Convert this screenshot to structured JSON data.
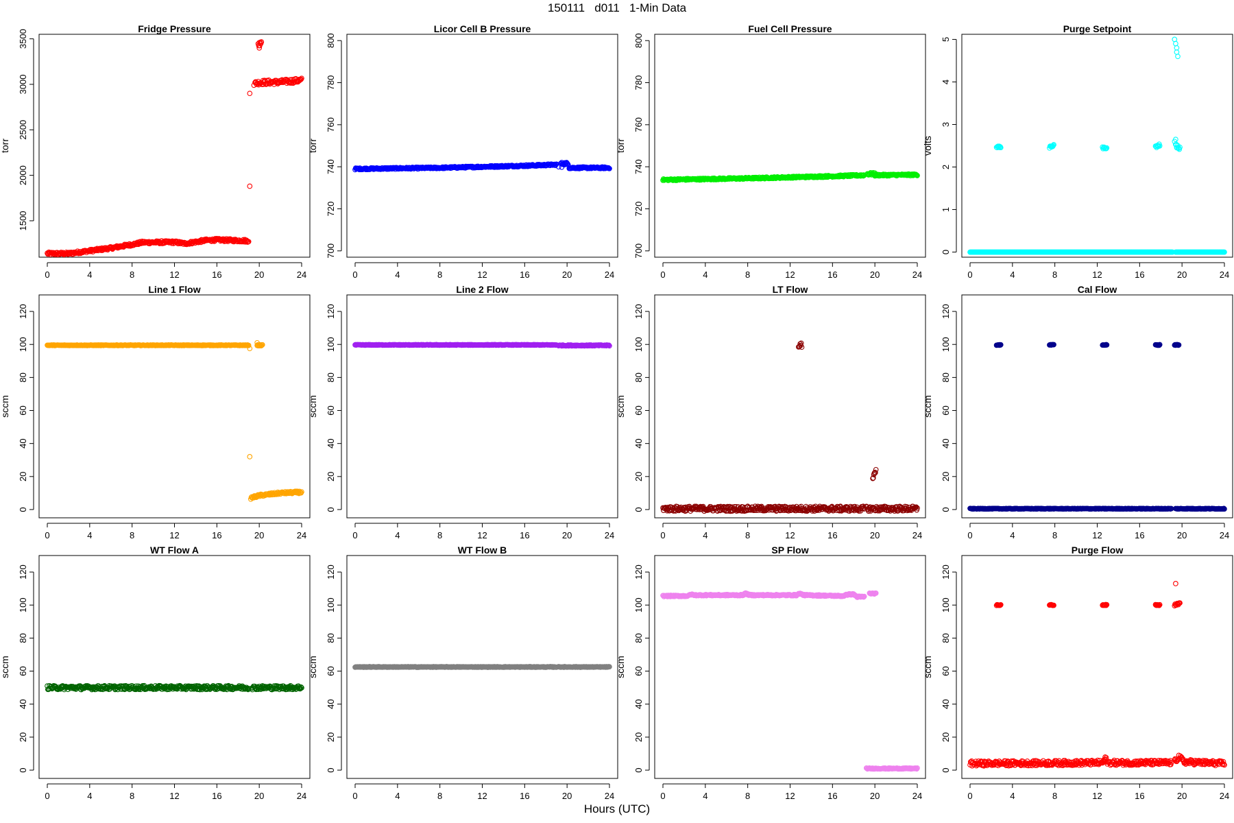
{
  "title": "150111   d011   1-Min Data",
  "xlabel": "Hours (UTC)",
  "x_ticks": [
    0,
    4,
    8,
    12,
    16,
    20,
    24
  ],
  "chart_data": [
    {
      "type": "scatter",
      "title": "Fridge Pressure",
      "ylabel": "torr",
      "color": "#ff0000",
      "xlim": [
        0,
        24
      ],
      "ylim": [
        1100,
        3550
      ],
      "yticks": [
        1500,
        2000,
        2500,
        3000,
        3500
      ],
      "segments": [
        {
          "points": [
            [
              0,
              1140
            ],
            [
              2,
              1140
            ],
            [
              4,
              1170
            ],
            [
              6,
              1200
            ],
            [
              8,
              1240
            ],
            [
              9,
              1262
            ],
            [
              12,
              1265
            ],
            [
              13,
              1250
            ],
            [
              15,
              1285
            ],
            [
              16,
              1290
            ],
            [
              19,
              1280
            ]
          ],
          "noise": 15
        },
        {
          "points": [
            [
              19.6,
              3010
            ],
            [
              20,
              3020
            ],
            [
              22,
              3025
            ],
            [
              24,
              3045
            ]
          ],
          "noise": 25
        },
        {
          "points": [
            [
              19.9,
              3430
            ],
            [
              20.2,
              3470
            ]
          ],
          "noise": 30
        }
      ],
      "outliers": [
        [
          19.1,
          1880
        ],
        [
          19.1,
          2900
        ],
        [
          19.5,
          2990
        ],
        [
          20,
          3400
        ]
      ]
    },
    {
      "type": "scatter",
      "title": "Licor Cell B Pressure",
      "ylabel": "torr",
      "color": "#0000ff",
      "xlim": [
        0,
        24
      ],
      "ylim": [
        697,
        803
      ],
      "yticks": [
        700,
        720,
        740,
        760,
        780,
        800
      ],
      "segments": [
        {
          "points": [
            [
              0,
              739
            ],
            [
              8,
              739.5
            ],
            [
              16,
              740.5
            ],
            [
              19,
              741
            ]
          ],
          "noise": 0.4
        },
        {
          "points": [
            [
              19.4,
              741.5
            ],
            [
              20.1,
              741.5
            ]
          ],
          "noise": 0.6
        },
        {
          "points": [
            [
              20.2,
              739.5
            ],
            [
              24,
              739.5
            ]
          ],
          "noise": 0.4
        }
      ],
      "outliers": [
        [
          19.2,
          740
        ],
        [
          19.5,
          739.8
        ]
      ]
    },
    {
      "type": "scatter",
      "title": "Fuel Cell Pressure",
      "ylabel": "torr",
      "color": "#00ee00",
      "xlim": [
        0,
        24
      ],
      "ylim": [
        697,
        803
      ],
      "yticks": [
        700,
        720,
        740,
        760,
        780,
        800
      ],
      "segments": [
        {
          "points": [
            [
              0,
              733.8
            ],
            [
              8,
              734.5
            ],
            [
              16,
              735.5
            ],
            [
              19,
              736
            ]
          ],
          "noise": 0.4
        },
        {
          "points": [
            [
              19.3,
              736.6
            ],
            [
              20,
              736.6
            ]
          ],
          "noise": 0.6
        },
        {
          "points": [
            [
              20,
              736
            ],
            [
              24,
              736.2
            ]
          ],
          "noise": 0.4
        }
      ],
      "outliers": []
    },
    {
      "type": "scatter",
      "title": "Purge Setpoint",
      "ylabel": "volts",
      "color": "#00ffff",
      "xlim": [
        0,
        24
      ],
      "ylim": [
        -0.12,
        5.12
      ],
      "yticks": [
        0,
        1,
        2,
        3,
        4,
        5
      ],
      "segments": [
        {
          "points": [
            [
              0,
              0
            ],
            [
              19.1,
              0
            ]
          ],
          "noise": 0
        },
        {
          "points": [
            [
              19.4,
              0
            ],
            [
              24,
              0
            ]
          ],
          "noise": 0
        },
        {
          "points": [
            [
              2.5,
              2.47
            ],
            [
              2.9,
              2.47
            ]
          ],
          "noise": 0.02
        },
        {
          "points": [
            [
              7.5,
              2.45
            ],
            [
              7.9,
              2.52
            ]
          ],
          "noise": 0.03
        },
        {
          "points": [
            [
              12.5,
              2.45
            ],
            [
              12.9,
              2.45
            ]
          ],
          "noise": 0.02
        },
        {
          "points": [
            [
              17.5,
              2.47
            ],
            [
              17.9,
              2.52
            ]
          ],
          "noise": 0.03
        },
        {
          "points": [
            [
              19.4,
              2.5
            ],
            [
              19.8,
              2.45
            ]
          ],
          "noise": 0.04
        }
      ],
      "outliers": [
        [
          19.3,
          5.0
        ],
        [
          19.4,
          4.9
        ],
        [
          19.5,
          4.8
        ],
        [
          19.5,
          4.7
        ],
        [
          19.6,
          4.6
        ],
        [
          19.3,
          2.6
        ],
        [
          19.4,
          2.65
        ]
      ]
    },
    {
      "type": "scatter",
      "title": "Line 1 Flow",
      "ylabel": "sccm",
      "color": "#ffa500",
      "xlim": [
        0,
        24
      ],
      "ylim": [
        -5,
        130
      ],
      "yticks": [
        0,
        20,
        40,
        60,
        80,
        100,
        120
      ],
      "segments": [
        {
          "points": [
            [
              0,
              99.5
            ],
            [
              19,
              99.5
            ]
          ],
          "noise": 0.2
        },
        {
          "points": [
            [
              19.8,
              99.5
            ],
            [
              20.3,
              99.5
            ]
          ],
          "noise": 0.3
        },
        {
          "points": [
            [
              19.2,
              7
            ],
            [
              20,
              8.5
            ],
            [
              22,
              10
            ],
            [
              24,
              10.5
            ]
          ],
          "noise": 0.7
        }
      ],
      "outliers": [
        [
          19.1,
          97.5
        ],
        [
          19.1,
          32
        ],
        [
          19.8,
          101
        ]
      ]
    },
    {
      "type": "scatter",
      "title": "Line 2 Flow",
      "ylabel": "sccm",
      "color": "#a020f0",
      "xlim": [
        0,
        24
      ],
      "ylim": [
        -5,
        130
      ],
      "yticks": [
        0,
        20,
        40,
        60,
        80,
        100,
        120
      ],
      "segments": [
        {
          "points": [
            [
              0,
              99.7
            ],
            [
              19,
              99.7
            ]
          ],
          "noise": 0.2
        },
        {
          "points": [
            [
              19.2,
              99.4
            ],
            [
              24,
              99.4
            ]
          ],
          "noise": 0.3
        }
      ],
      "outliers": []
    },
    {
      "type": "scatter",
      "title": "LT Flow",
      "ylabel": "sccm",
      "color": "#8b0000",
      "xlim": [
        0,
        24
      ],
      "ylim": [
        -5,
        130
      ],
      "yticks": [
        0,
        20,
        40,
        60,
        80,
        100,
        120
      ],
      "segments": [
        {
          "points": [
            [
              0,
              0.5
            ],
            [
              19,
              0.5
            ]
          ],
          "noise": 1.5
        },
        {
          "points": [
            [
              19.2,
              0.5
            ],
            [
              24,
              0.5
            ]
          ],
          "noise": 1.5
        },
        {
          "points": [
            [
              12.8,
              99.5
            ],
            [
              13.1,
              99.5
            ]
          ],
          "noise": 1.5
        },
        {
          "points": [
            [
              19.8,
              19
            ],
            [
              20.1,
              24
            ]
          ],
          "noise": 1.2
        }
      ],
      "outliers": []
    },
    {
      "type": "scatter",
      "title": "Cal Flow",
      "ylabel": "sccm",
      "color": "#00008b",
      "xlim": [
        0,
        24
      ],
      "ylim": [
        -5,
        130
      ],
      "yticks": [
        0,
        20,
        40,
        60,
        80,
        100,
        120
      ],
      "segments": [
        {
          "points": [
            [
              0,
              0.5
            ],
            [
              19,
              0.5
            ]
          ],
          "noise": 0.2
        },
        {
          "points": [
            [
              19.4,
              0.5
            ],
            [
              24,
              0.5
            ]
          ],
          "noise": 0.2
        },
        {
          "points": [
            [
              2.5,
              99.7
            ],
            [
              2.9,
              99.7
            ]
          ],
          "noise": 0.2
        },
        {
          "points": [
            [
              7.5,
              99.7
            ],
            [
              7.9,
              99.7
            ]
          ],
          "noise": 0.2
        },
        {
          "points": [
            [
              12.5,
              99.7
            ],
            [
              12.9,
              99.7
            ]
          ],
          "noise": 0.2
        },
        {
          "points": [
            [
              17.5,
              99.7
            ],
            [
              17.9,
              99.7
            ]
          ],
          "noise": 0.2
        },
        {
          "points": [
            [
              19.3,
              99.7
            ],
            [
              19.7,
              99.7
            ]
          ],
          "noise": 0.2
        }
      ],
      "outliers": []
    },
    {
      "type": "scatter",
      "title": "WT Flow A",
      "ylabel": "sccm",
      "color": "#006400",
      "xlim": [
        0,
        24
      ],
      "ylim": [
        -5,
        130
      ],
      "yticks": [
        0,
        20,
        40,
        60,
        80,
        100,
        120
      ],
      "segments": [
        {
          "points": [
            [
              0,
              50
            ],
            [
              19,
              50
            ]
          ],
          "noise": 1.2
        },
        {
          "points": [
            [
              19.3,
              50
            ],
            [
              24,
              50
            ]
          ],
          "noise": 1.2
        }
      ],
      "outliers": []
    },
    {
      "type": "scatter",
      "title": "WT Flow B",
      "ylabel": "sccm",
      "color": "#808080",
      "xlim": [
        0,
        24
      ],
      "ylim": [
        -5,
        130
      ],
      "yticks": [
        0,
        20,
        40,
        60,
        80,
        100,
        120
      ],
      "segments": [
        {
          "points": [
            [
              0,
              62.5
            ],
            [
              19,
              62.5
            ]
          ],
          "noise": 0.2
        },
        {
          "points": [
            [
              19.2,
              62.5
            ],
            [
              24,
              62.5
            ]
          ],
          "noise": 0.2
        }
      ],
      "outliers": []
    },
    {
      "type": "scatter",
      "title": "SP Flow",
      "ylabel": "sccm",
      "color": "#ee82ee",
      "xlim": [
        0,
        24
      ],
      "ylim": [
        -5,
        130
      ],
      "yticks": [
        0,
        20,
        40,
        60,
        80,
        100,
        120
      ],
      "segments": [
        {
          "points": [
            [
              0,
              105.5
            ],
            [
              2.4,
              105.5
            ],
            [
              2.6,
              106.5
            ],
            [
              3,
              106
            ],
            [
              7.5,
              106
            ],
            [
              7.8,
              107
            ],
            [
              8.2,
              106
            ],
            [
              12.6,
              106
            ],
            [
              12.9,
              107
            ],
            [
              13.3,
              106
            ],
            [
              17,
              105.5
            ],
            [
              17.5,
              106.5
            ],
            [
              18,
              106.5
            ],
            [
              18.3,
              105
            ],
            [
              19,
              105
            ]
          ],
          "noise": 0.4
        },
        {
          "points": [
            [
              19.5,
              107
            ],
            [
              20.1,
              107
            ]
          ],
          "noise": 0.3
        },
        {
          "points": [
            [
              19.2,
              1
            ],
            [
              24,
              1
            ]
          ],
          "noise": 0.3
        }
      ],
      "outliers": []
    },
    {
      "type": "scatter",
      "title": "Purge Flow",
      "ylabel": "sccm",
      "color": "#ff0000",
      "xlim": [
        0,
        24
      ],
      "ylim": [
        -5,
        130
      ],
      "yticks": [
        0,
        20,
        40,
        60,
        80,
        100,
        120
      ],
      "segments": [
        {
          "points": [
            [
              0,
              4
            ],
            [
              12.5,
              4.5
            ],
            [
              12.8,
              7
            ],
            [
              13,
              4.5
            ],
            [
              19,
              4.5
            ]
          ],
          "noise": 1.5
        },
        {
          "points": [
            [
              19.3,
              5
            ],
            [
              19.7,
              8
            ],
            [
              20.2,
              5
            ],
            [
              24,
              4
            ]
          ],
          "noise": 1.5
        },
        {
          "points": [
            [
              2.5,
              100
            ],
            [
              2.9,
              100
            ]
          ],
          "noise": 0.3
        },
        {
          "points": [
            [
              7.5,
              100
            ],
            [
              7.9,
              100
            ]
          ],
          "noise": 0.3
        },
        {
          "points": [
            [
              12.5,
              100
            ],
            [
              12.9,
              100
            ]
          ],
          "noise": 0.3
        },
        {
          "points": [
            [
              17.5,
              100
            ],
            [
              17.9,
              100
            ]
          ],
          "noise": 0.3
        },
        {
          "points": [
            [
              19.3,
              100
            ],
            [
              19.8,
              101
            ]
          ],
          "noise": 0.5
        }
      ],
      "outliers": [
        [
          19.4,
          113
        ]
      ]
    }
  ]
}
